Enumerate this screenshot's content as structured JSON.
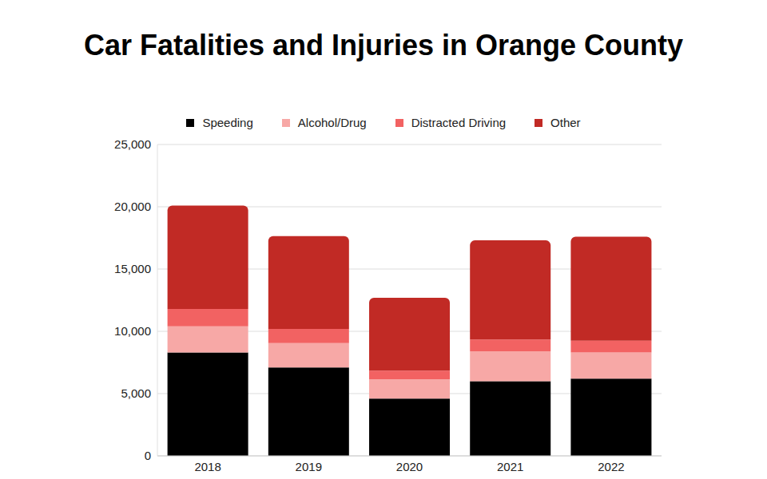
{
  "chart_data": {
    "type": "bar",
    "title": "Car Fatalities and Injuries in Orange County",
    "stacked": true,
    "grid": true,
    "legend": "top",
    "categories": [
      "2018",
      "2019",
      "2020",
      "2021",
      "2022"
    ],
    "series": [
      {
        "name": "Speeding",
        "color": "#000000",
        "values": [
          8300,
          7100,
          4600,
          6000,
          6200
        ]
      },
      {
        "name": "Alcohol/Drug",
        "color": "#f7a8a6",
        "values": [
          2100,
          1950,
          1550,
          2400,
          2100
        ]
      },
      {
        "name": "Distracted Driving",
        "color": "#f26262",
        "values": [
          1400,
          1150,
          700,
          950,
          950
        ]
      },
      {
        "name": "Other",
        "color": "#c12a25",
        "values": [
          8300,
          7450,
          5850,
          7950,
          8350
        ]
      }
    ],
    "ylim": [
      0,
      25000
    ],
    "yticks": [
      0,
      {
        "value": 5000,
        "label": "5,000"
      },
      {
        "value": 10000,
        "label": "10,000"
      },
      {
        "value": 15000,
        "label": "15,000"
      },
      {
        "value": 20000,
        "label": "20,000"
      },
      {
        "value": 25000,
        "label": "25,000"
      }
    ]
  }
}
